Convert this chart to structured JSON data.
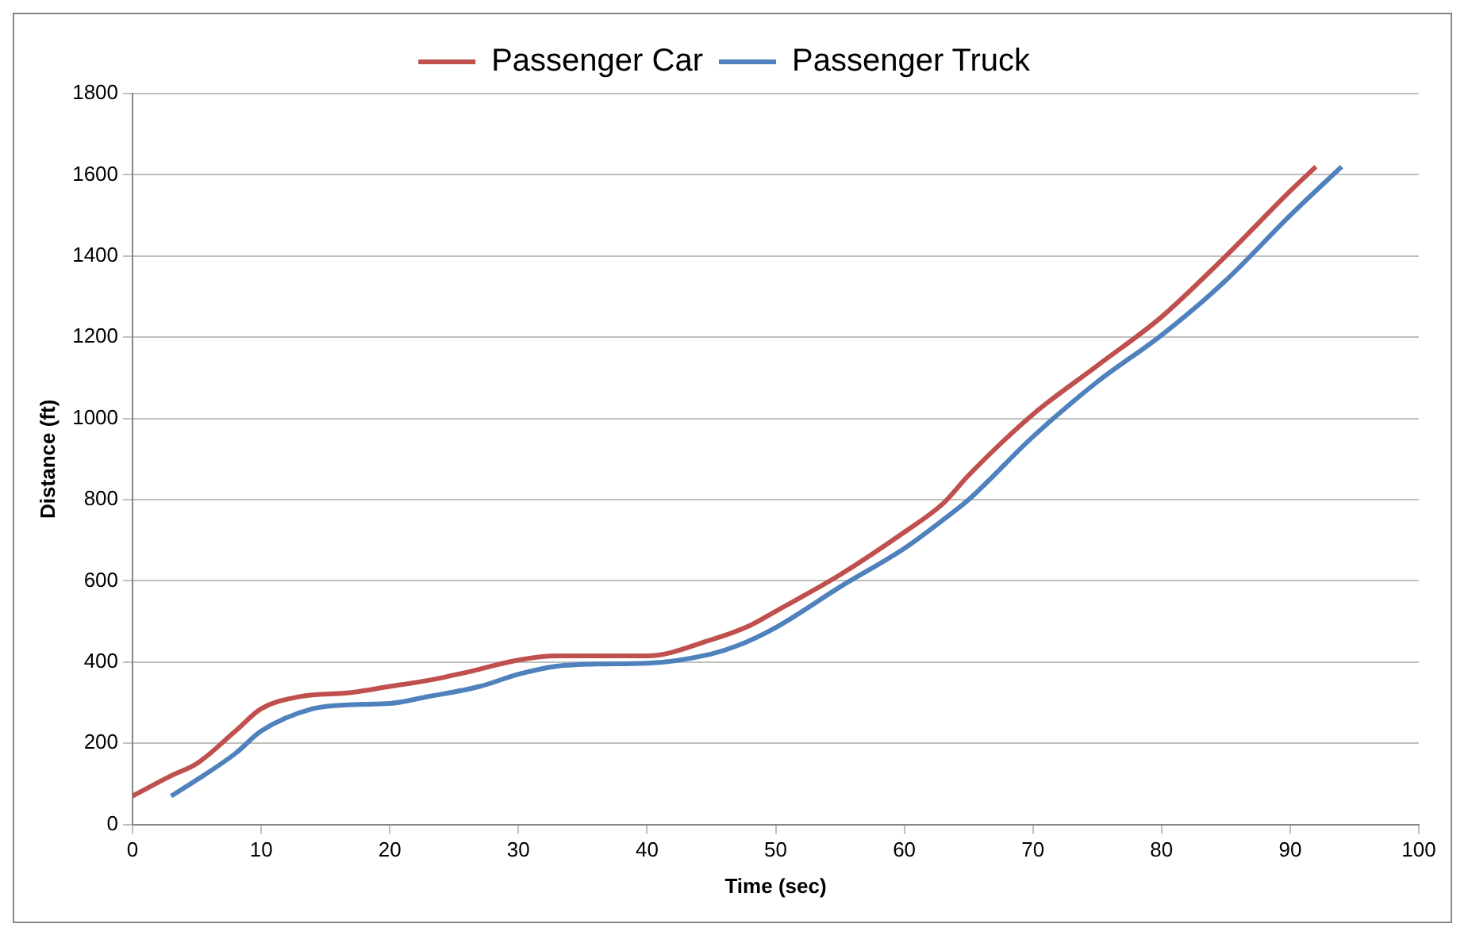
{
  "chart_data": {
    "type": "line",
    "xlabel": "Time (sec)",
    "ylabel": "Distance (ft)",
    "xlim": [
      0,
      100
    ],
    "xticks": [
      0,
      10,
      20,
      30,
      40,
      50,
      60,
      70,
      80,
      90,
      100
    ],
    "ylim": [
      0,
      1800
    ],
    "yticks": [
      0,
      200,
      400,
      600,
      800,
      1000,
      1200,
      1400,
      1600,
      1800
    ],
    "grid": "y",
    "legend": "top",
    "marker": "none",
    "line_style": "solid",
    "series": [
      {
        "name": "Passenger Car",
        "color": "#c0504d",
        "x": [
          0,
          3,
          5,
          8,
          10,
          13,
          17,
          20,
          23,
          26,
          30,
          33,
          40,
          45,
          48,
          50,
          55,
          60,
          63,
          65,
          70,
          75,
          80,
          85,
          90,
          92
        ],
        "values": [
          70,
          120,
          150,
          230,
          285,
          315,
          325,
          340,
          355,
          375,
          405,
          415,
          415,
          455,
          490,
          525,
          615,
          720,
          790,
          860,
          1010,
          1130,
          1250,
          1400,
          1560,
          1620
        ]
      },
      {
        "name": "Passenger Truck",
        "color": "#4f81bd",
        "x": [
          3,
          5,
          8,
          10,
          14,
          17,
          20,
          23,
          27,
          30,
          33,
          36,
          40,
          45,
          47,
          50,
          55,
          60,
          63,
          65,
          70,
          75,
          80,
          85,
          90,
          94
        ],
        "values": [
          70,
          110,
          175,
          230,
          285,
          295,
          298,
          315,
          340,
          370,
          390,
          395,
          397,
          420,
          440,
          485,
          585,
          680,
          750,
          800,
          955,
          1090,
          1205,
          1340,
          1500,
          1620
        ]
      }
    ]
  }
}
